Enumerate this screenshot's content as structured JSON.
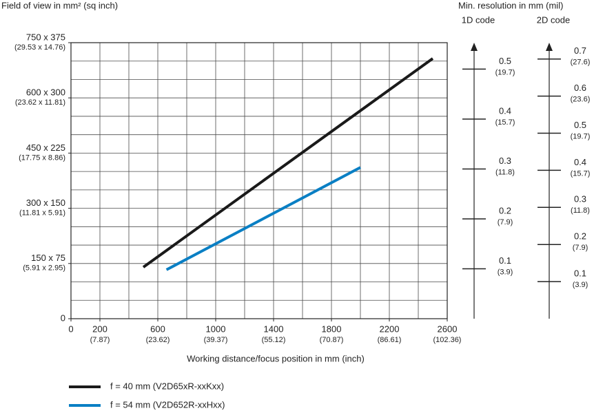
{
  "chart_data": {
    "type": "line",
    "y_axis_label": "Field of view in mm² (sq inch)",
    "x_axis_label": "Working distance/focus position in mm (inch)",
    "xlim": [
      0,
      2600
    ],
    "ylim": [
      0,
      750
    ],
    "xticks": [
      0,
      200,
      600,
      1000,
      1400,
      1800,
      2200,
      2600
    ],
    "xtick_sublabels": [
      null,
      "(7.87)",
      "(23.62)",
      "(39.37)",
      "(55.12)",
      "(70.87)",
      "(86.61)",
      "(102.36)"
    ],
    "yticks": [
      0,
      {
        "value": 150,
        "label": "150 x 75"
      },
      {
        "value": 300,
        "label": "300 x 150"
      },
      {
        "value": 450,
        "label": "450 x 225"
      },
      {
        "value": 600,
        "label": "600 x 300"
      },
      {
        "value": 750,
        "label": "750 x 375"
      }
    ],
    "ytick_sublabels": [
      null,
      "(5.91 x 2.95)",
      "(11.81 x 5.91)",
      "(17.75 x 8.86)",
      "(23.62 x 11.81)",
      "(29.53 x 14.76)"
    ],
    "xgrid": [
      200,
      400,
      600,
      800,
      1000,
      1200,
      1400,
      1600,
      1800,
      2000,
      2200,
      2400
    ],
    "ygrid": [
      50,
      100,
      150,
      200,
      250,
      300,
      350,
      400,
      450,
      500,
      550,
      600,
      650,
      700
    ],
    "grid": true,
    "series": [
      {
        "name": "f = 40 mm (V2D65xR-xxKxx)",
        "color": "#1a1a1a",
        "x": [
          500,
          2500
        ],
        "values": [
          140,
          707
        ]
      },
      {
        "name": "f = 54 mm (V2D652R-xxHxx)",
        "color": "#0a7fc4",
        "x": [
          660,
          2000
        ],
        "values": [
          133,
          411
        ]
      }
    ],
    "resolution_title": "Min. resolution in mm (mil)",
    "resolution_axes": [
      {
        "name": "1D code",
        "lim": [
          0,
          0.553
        ],
        "ticks": [
          0.1,
          0.2,
          0.3,
          0.4,
          0.5
        ],
        "tick_sublabels": [
          "(3.9)",
          "(7.9)",
          "(11.8)",
          "(15.7)",
          "(19.7)"
        ]
      },
      {
        "name": "2D code",
        "lim": [
          0,
          0.744
        ],
        "ticks": [
          0.1,
          0.2,
          0.3,
          0.4,
          0.5,
          0.6,
          0.7
        ],
        "tick_sublabels": [
          "(3.9)",
          "(7.9)",
          "(11.8)",
          "(15.7)",
          "(19.7)",
          "(23.6)",
          "(27.6)"
        ]
      }
    ]
  }
}
